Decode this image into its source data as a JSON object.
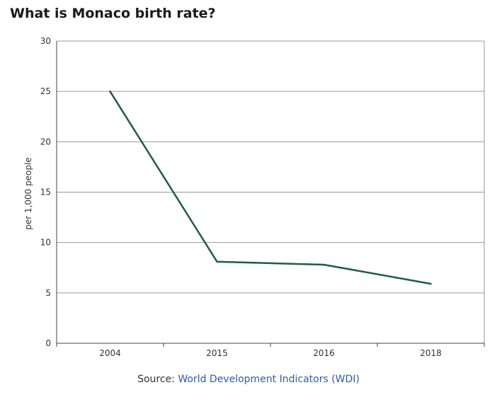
{
  "colors": {
    "line": "#1e5c48",
    "axis": "#444444",
    "grid": "#999999",
    "link": "#2a5ca8"
  },
  "chart_data": {
    "type": "line",
    "title": "What is Monaco birth rate?",
    "xlabel": "",
    "ylabel": "per 1,000 people",
    "categories": [
      "2004",
      "2015",
      "2016",
      "2018"
    ],
    "values": [
      25,
      8.1,
      7.8,
      5.9
    ],
    "ylim": [
      0,
      30
    ],
    "yticks": [
      0,
      5,
      10,
      15,
      20,
      25,
      30
    ],
    "grid": true,
    "legend": "none"
  },
  "source": {
    "label": "Source:",
    "link_text": "World Development Indicators (WDI)"
  }
}
